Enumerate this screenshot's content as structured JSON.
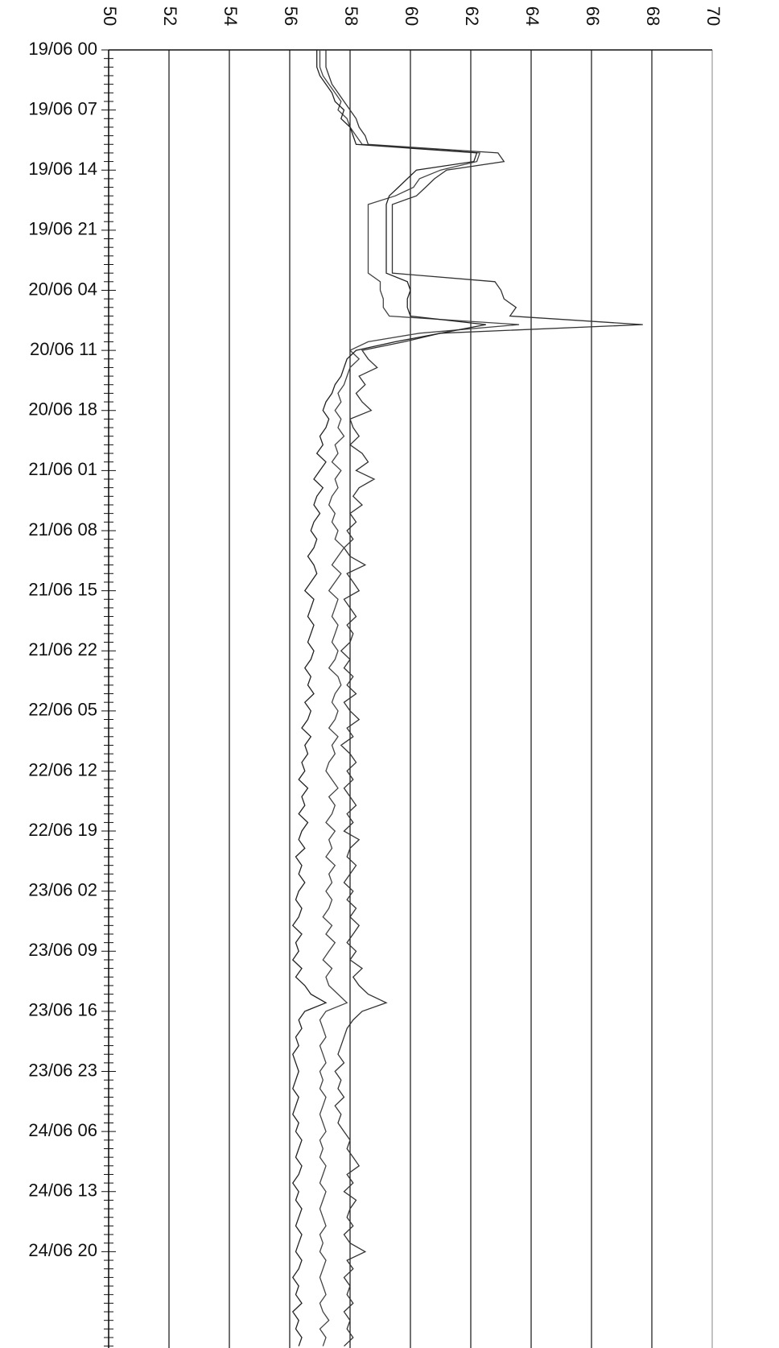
{
  "chart_data": {
    "type": "line",
    "categories": [
      "19/06 00",
      null,
      null,
      null,
      null,
      null,
      null,
      "19/06 07",
      null,
      null,
      null,
      null,
      null,
      null,
      "19/06 14",
      null,
      null,
      null,
      null,
      null,
      null,
      "19/06 21",
      null,
      null,
      null,
      null,
      null,
      null,
      "20/06 04",
      null,
      null,
      null,
      null,
      null,
      null,
      "20/06 11",
      null,
      null,
      null,
      null,
      null,
      null,
      "20/06 18",
      null,
      null,
      null,
      null,
      null,
      null,
      "21/06 01",
      null,
      null,
      null,
      null,
      null,
      null,
      "21/06 08",
      null,
      null,
      null,
      null,
      null,
      null,
      "21/06 15",
      null,
      null,
      null,
      null,
      null,
      null,
      "21/06 22",
      null,
      null,
      null,
      null,
      null,
      null,
      "22/06 05",
      null,
      null,
      null,
      null,
      null,
      null,
      "22/06 12",
      null,
      null,
      null,
      null,
      null,
      null,
      "22/06 19",
      null,
      null,
      null,
      null,
      null,
      null,
      "23/06 02",
      null,
      null,
      null,
      null,
      null,
      null,
      "23/06 09",
      null,
      null,
      null,
      null,
      null,
      null,
      "23/06 16",
      null,
      null,
      null,
      null,
      null,
      null,
      "23/06 23",
      null,
      null,
      null,
      null,
      null,
      null,
      "24/06 06",
      null,
      null,
      null,
      null,
      null,
      null,
      "24/06 13",
      null,
      null,
      null,
      null,
      null,
      null,
      "24/06 20",
      null,
      null,
      null,
      null,
      null,
      null,
      null,
      null,
      null,
      null,
      null
    ],
    "series": [
      {
        "color": "#333333",
        "values": [
          57.2,
          57.2,
          57.2,
          57.3,
          57.4,
          57.6,
          57.8,
          58.0,
          58.2,
          58.3,
          58.5,
          58.6,
          62.9,
          63.1,
          61.2,
          60.8,
          60.5,
          60.2,
          59.4,
          59.4,
          59.4,
          59.4,
          59.4,
          59.4,
          59.4,
          59.4,
          59.4,
          62.8,
          63.0,
          63.1,
          63.5,
          63.3,
          67.7,
          61.0,
          59.8,
          58.4,
          58.6,
          58.9,
          58.3,
          58.5,
          58.2,
          58.4,
          58.7,
          58.0,
          58.1,
          58.3,
          58.0,
          58.4,
          58.6,
          58.2,
          58.8,
          58.3,
          58.1,
          58.4,
          58.0,
          58.2,
          57.9,
          58.1,
          57.8,
          58.0,
          58.5,
          57.9,
          58.1,
          58.3,
          57.8,
          58.0,
          58.2,
          57.9,
          58.1,
          58.0,
          57.7,
          58.0,
          57.8,
          58.1,
          57.9,
          58.2,
          57.8,
          58.0,
          58.3,
          57.9,
          58.1,
          57.7,
          58.0,
          58.2,
          57.9,
          58.1,
          57.8,
          58.0,
          58.2,
          57.9,
          58.1,
          57.8,
          58.3,
          58.0,
          57.9,
          58.2,
          58.0,
          57.8,
          58.1,
          57.9,
          58.2,
          58.0,
          58.3,
          58.1,
          57.9,
          58.2,
          58.0,
          58.4,
          58.1,
          58.3,
          58.6,
          59.2,
          58.4,
          58.1,
          57.9,
          57.8,
          57.7,
          57.6,
          57.8,
          57.5,
          57.7,
          57.6,
          57.8,
          57.5,
          57.7,
          57.6,
          57.8,
          58.0,
          57.9,
          58.1,
          58.3,
          57.9,
          58.1,
          57.8,
          58.2,
          58.0,
          57.9,
          58.1,
          57.8,
          58.0,
          58.5,
          57.9,
          58.1,
          57.8,
          58.0,
          57.9,
          58.1,
          57.8,
          58.0,
          57.9,
          58.1,
          57.8
        ]
      },
      {
        "color": "#444444",
        "values": [
          57.0,
          57.0,
          57.0,
          57.1,
          57.3,
          57.5,
          57.7,
          57.6,
          57.9,
          58.0,
          58.2,
          58.4,
          62.3,
          62.2,
          61.0,
          60.3,
          60.1,
          59.5,
          58.6,
          58.6,
          58.6,
          58.6,
          58.6,
          58.6,
          58.6,
          58.6,
          58.6,
          59.0,
          59.0,
          59.1,
          59.1,
          59.3,
          63.6,
          60.3,
          58.6,
          58.0,
          58.3,
          58.0,
          57.9,
          57.8,
          57.6,
          57.7,
          57.5,
          57.7,
          57.6,
          57.8,
          57.5,
          57.6,
          57.4,
          57.7,
          57.5,
          57.6,
          57.4,
          57.3,
          57.5,
          57.4,
          57.6,
          57.5,
          57.8,
          57.6,
          57.4,
          57.7,
          57.5,
          57.3,
          57.6,
          57.5,
          57.4,
          57.6,
          57.5,
          57.4,
          57.6,
          57.5,
          57.3,
          57.6,
          57.7,
          57.5,
          57.4,
          57.6,
          57.5,
          57.3,
          57.6,
          57.4,
          57.5,
          57.3,
          57.2,
          57.4,
          57.6,
          57.3,
          57.5,
          57.4,
          57.2,
          57.5,
          57.3,
          57.4,
          57.2,
          57.5,
          57.3,
          57.4,
          57.2,
          57.4,
          57.3,
          57.1,
          57.4,
          57.2,
          57.5,
          57.3,
          57.1,
          57.4,
          57.2,
          57.3,
          57.6,
          57.9,
          57.2,
          57.0,
          57.1,
          57.2,
          57.0,
          57.1,
          57.2,
          57.0,
          57.1,
          57.0,
          57.2,
          57.1,
          57.0,
          57.1,
          57.2,
          57.0,
          57.1,
          57.0,
          57.2,
          57.1,
          57.0,
          57.2,
          57.1,
          57.0,
          57.1,
          57.2,
          57.0,
          57.1,
          57.0,
          57.2,
          57.1,
          57.0,
          57.1,
          57.2,
          57.0,
          57.1,
          57.3,
          57.0,
          57.2,
          57.1
        ]
      },
      {
        "color": "#222222",
        "values": [
          56.9,
          56.9,
          56.9,
          57.0,
          57.2,
          57.4,
          57.5,
          57.8,
          57.7,
          58.0,
          58.1,
          58.2,
          62.2,
          62.1,
          60.2,
          59.9,
          59.6,
          59.3,
          59.2,
          59.2,
          59.2,
          59.2,
          59.2,
          59.2,
          59.2,
          59.2,
          59.2,
          59.9,
          60.0,
          59.9,
          59.9,
          60.0,
          62.5,
          61.0,
          59.5,
          58.2,
          57.9,
          57.8,
          57.7,
          57.5,
          57.4,
          57.2,
          57.1,
          57.3,
          57.2,
          57.0,
          57.1,
          56.9,
          57.2,
          57.0,
          56.8,
          57.1,
          56.9,
          56.8,
          57.0,
          56.8,
          56.7,
          56.9,
          56.8,
          56.6,
          56.8,
          56.9,
          56.7,
          56.5,
          56.8,
          56.7,
          56.6,
          56.8,
          56.7,
          56.6,
          56.8,
          56.7,
          56.5,
          56.7,
          56.6,
          56.8,
          56.5,
          56.7,
          56.6,
          56.4,
          56.7,
          56.5,
          56.6,
          56.4,
          56.5,
          56.3,
          56.6,
          56.4,
          56.5,
          56.3,
          56.6,
          56.4,
          56.3,
          56.5,
          56.2,
          56.4,
          56.3,
          56.5,
          56.3,
          56.2,
          56.4,
          56.3,
          56.1,
          56.4,
          56.2,
          56.3,
          56.1,
          56.4,
          56.2,
          56.5,
          56.7,
          57.2,
          56.5,
          56.3,
          56.4,
          56.2,
          56.3,
          56.1,
          56.2,
          56.3,
          56.2,
          56.1,
          56.3,
          56.2,
          56.1,
          56.3,
          56.2,
          56.4,
          56.3,
          56.2,
          56.4,
          56.3,
          56.1,
          56.3,
          56.2,
          56.4,
          56.3,
          56.2,
          56.4,
          56.3,
          56.2,
          56.4,
          56.3,
          56.1,
          56.3,
          56.2,
          56.4,
          56.1,
          56.3,
          56.2,
          56.4,
          56.3
        ]
      }
    ],
    "ylim": [
      50,
      70
    ],
    "yticks": [
      50,
      52,
      54,
      56,
      58,
      60,
      62,
      64,
      66,
      68,
      70
    ],
    "grid": true
  }
}
